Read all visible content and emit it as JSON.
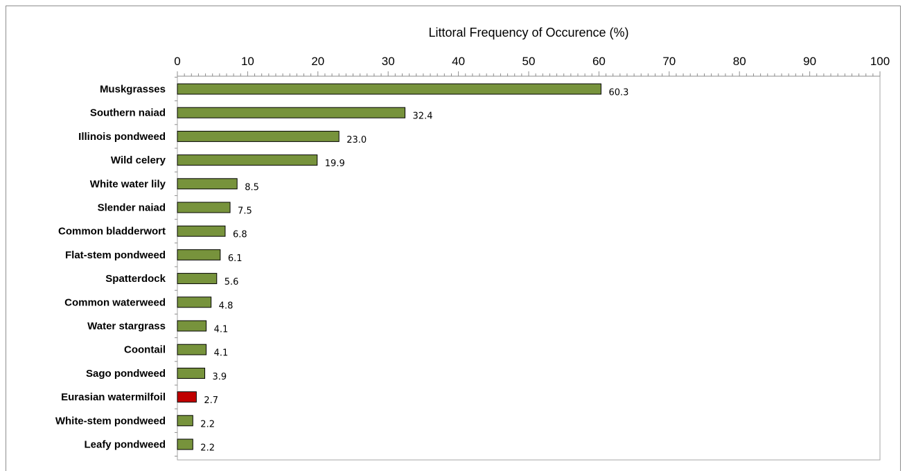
{
  "chart_data": {
    "type": "bar",
    "orientation": "horizontal",
    "title": "",
    "xlabel": "Littoral Frequency of Occurence (%)",
    "ylabel": "",
    "xlim": [
      0,
      100
    ],
    "major_ticks": [
      0,
      10,
      20,
      30,
      40,
      50,
      60,
      70,
      80,
      90,
      100
    ],
    "minor_tick_step": 1,
    "axis_position": "top",
    "grid": false,
    "legend": "none",
    "categories": [
      "Muskgrasses",
      "Southern naiad",
      "Illinois pondweed",
      "Wild celery",
      "White water lily",
      "Slender naiad",
      "Common bladderwort",
      "Flat-stem pondweed",
      "Spatterdock",
      "Common waterweed",
      "Water stargrass",
      "Coontail",
      "Sago pondweed",
      "Eurasian watermilfoil",
      "White-stem pondweed",
      "Leafy pondweed"
    ],
    "values": [
      60.3,
      32.4,
      23.0,
      19.9,
      8.5,
      7.5,
      6.8,
      6.1,
      5.6,
      4.8,
      4.1,
      4.1,
      3.9,
      2.7,
      2.2,
      2.2
    ],
    "value_labels": [
      "60.3",
      "32.4",
      "23.0",
      "19.9",
      "8.5",
      "7.5",
      "6.8",
      "6.1",
      "5.6",
      "4.8",
      "4.1",
      "4.1",
      "3.9",
      "2.7",
      "2.2",
      "2.2"
    ],
    "colors": {
      "native": "#77933c",
      "invasive": "#c00000",
      "bar_stroke": "#000000",
      "plot_border": "#a6a6a6"
    },
    "highlight": "Eurasian watermilfoil"
  }
}
